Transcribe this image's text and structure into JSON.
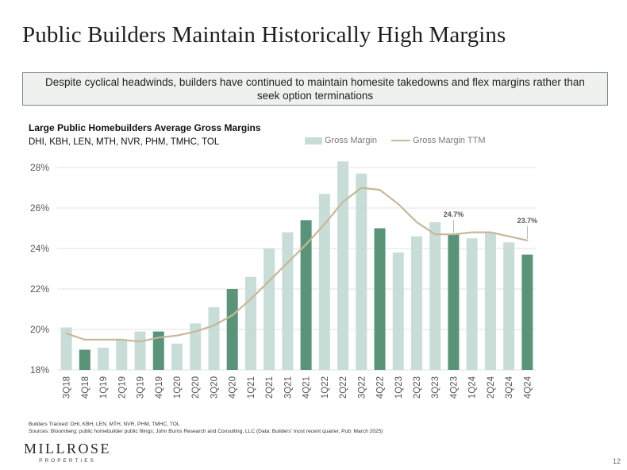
{
  "page": {
    "title": "Public Builders Maintain Historically High Margins",
    "callout": "Despite cyclical headwinds, builders have continued to maintain homesite takedowns and flex margins rather than seek option terminations",
    "page_number": "12"
  },
  "footnotes": {
    "line1": "Builders Tracked: DHI, KBH, LEN, MTH, NVR, PHM, TMHC, TOL",
    "line2": "Sources: Bloomberg; public homebuilder public filings; John Burns Research and Consulting, LLC (Data: Builders' most recent quarter, Pub: March 2025)"
  },
  "logo": {
    "name": "MILLROSE",
    "tagline": "PROPERTIES"
  },
  "chart_data": {
    "type": "bar",
    "title": "Large Public Homebuilders Average Gross Margins",
    "subtitle": "DHI, KBH, LEN, MTH, NVR, PHM, TMHC, TOL",
    "legend": [
      "Gross Margin",
      "Gross Margin TTM"
    ],
    "categories": [
      "3Q18",
      "4Q18",
      "1Q19",
      "2Q19",
      "3Q19",
      "4Q19",
      "1Q20",
      "2Q20",
      "3Q20",
      "4Q20",
      "1Q21",
      "2Q21",
      "3Q21",
      "4Q21",
      "1Q22",
      "2Q22",
      "3Q22",
      "4Q22",
      "1Q23",
      "2Q23",
      "3Q23",
      "4Q23",
      "1Q24",
      "2Q24",
      "3Q24",
      "4Q24"
    ],
    "series": [
      {
        "name": "Gross Margin",
        "type": "bar",
        "values": [
          20.1,
          19.0,
          19.1,
          19.5,
          19.9,
          19.9,
          19.3,
          20.3,
          21.1,
          22.0,
          22.6,
          24.0,
          24.8,
          25.4,
          26.7,
          28.3,
          27.7,
          25.0,
          23.8,
          24.6,
          25.3,
          24.7,
          24.5,
          24.8,
          24.3,
          23.7
        ],
        "highlighted_categories": [
          "4Q18",
          "4Q19",
          "4Q20",
          "4Q21",
          "4Q22",
          "4Q23",
          "4Q24"
        ]
      },
      {
        "name": "Gross Margin TTM",
        "type": "line",
        "values": [
          19.8,
          19.5,
          19.5,
          19.5,
          19.4,
          19.6,
          19.7,
          19.9,
          20.2,
          20.7,
          21.5,
          22.4,
          23.3,
          24.2,
          25.2,
          26.3,
          27.0,
          26.9,
          26.2,
          25.3,
          24.7,
          24.7,
          24.8,
          24.8,
          24.6,
          24.4
        ]
      }
    ],
    "data_labels": [
      {
        "category": "4Q23",
        "text": "24.7%"
      },
      {
        "category": "4Q24",
        "text": "23.7%"
      }
    ],
    "ylim": [
      18,
      28
    ],
    "yticks": [
      18,
      20,
      22,
      24,
      26,
      28
    ],
    "ytick_labels": [
      "18%",
      "20%",
      "22%",
      "24%",
      "26%",
      "28%"
    ],
    "xlabel": "",
    "ylabel": "",
    "grid": true,
    "colors": {
      "bar": "#c8ddd7",
      "bar_highlight": "#5a9478",
      "line": "#c7b899",
      "grid": "#e2e2e2",
      "tick_text": "#555555"
    }
  }
}
